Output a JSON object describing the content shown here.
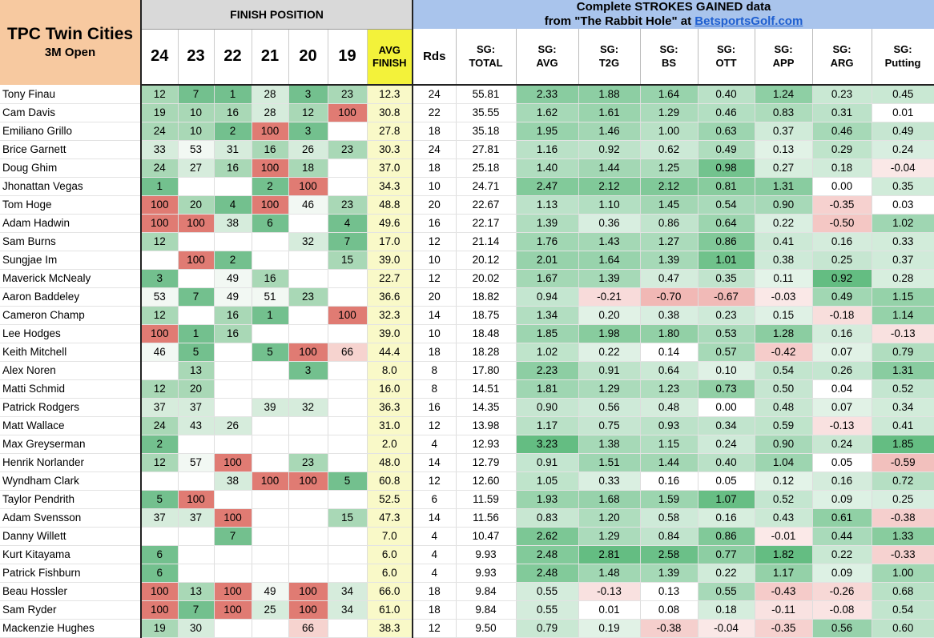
{
  "header": {
    "course": "TPC Twin Cities",
    "event": "3M Open",
    "finish_position_label": "FINISH POSITION",
    "sg_title_line1": "Complete STROKES GAINED data",
    "sg_title_prefix": "from \"The Rabbit Hole\" at ",
    "sg_title_link": "BetsportsGolf.com",
    "years": [
      "24",
      "23",
      "22",
      "21",
      "20",
      "19"
    ],
    "avg_finish_l1": "AVG",
    "avg_finish_l2": "FINISH",
    "rds": "Rds",
    "stat_cols": [
      [
        "SG:",
        "TOTAL"
      ],
      [
        "SG:",
        "AVG"
      ],
      [
        "SG:",
        "T2G"
      ],
      [
        "SG:",
        "BS"
      ],
      [
        "SG:",
        "OTT"
      ],
      [
        "SG:",
        "APP"
      ],
      [
        "SG:",
        "ARG"
      ],
      [
        "SG:",
        "Putting"
      ]
    ]
  },
  "rows": [
    {
      "name": "Tony Finau",
      "f": [
        "12",
        "7",
        "1",
        "28",
        "3",
        "23"
      ],
      "avg": "12.3",
      "rds": "24",
      "sg": [
        "55.81",
        "2.33",
        "1.88",
        "1.64",
        "0.40",
        "1.24",
        "0.23",
        "0.45"
      ]
    },
    {
      "name": "Cam Davis",
      "f": [
        "19",
        "10",
        "16",
        "28",
        "12",
        "100"
      ],
      "avg": "30.8",
      "rds": "22",
      "sg": [
        "35.55",
        "1.62",
        "1.61",
        "1.29",
        "0.46",
        "0.83",
        "0.31",
        "0.01"
      ]
    },
    {
      "name": "Emiliano Grillo",
      "f": [
        "24",
        "10",
        "2",
        "100",
        "3",
        ""
      ],
      "avg": "27.8",
      "rds": "18",
      "sg": [
        "35.18",
        "1.95",
        "1.46",
        "1.00",
        "0.63",
        "0.37",
        "0.46",
        "0.49"
      ]
    },
    {
      "name": "Brice Garnett",
      "f": [
        "33",
        "53",
        "31",
        "16",
        "26",
        "23"
      ],
      "avg": "30.3",
      "rds": "24",
      "sg": [
        "27.81",
        "1.16",
        "0.92",
        "0.62",
        "0.49",
        "0.13",
        "0.29",
        "0.24"
      ]
    },
    {
      "name": "Doug Ghim",
      "f": [
        "24",
        "27",
        "16",
        "100",
        "18",
        ""
      ],
      "avg": "37.0",
      "rds": "18",
      "sg": [
        "25.18",
        "1.40",
        "1.44",
        "1.25",
        "0.98",
        "0.27",
        "0.18",
        "-0.04"
      ]
    },
    {
      "name": "Jhonattan Vegas",
      "f": [
        "1",
        "",
        "",
        "2",
        "100",
        ""
      ],
      "avg": "34.3",
      "rds": "10",
      "sg": [
        "24.71",
        "2.47",
        "2.12",
        "2.12",
        "0.81",
        "1.31",
        "0.00",
        "0.35"
      ]
    },
    {
      "name": "Tom Hoge",
      "f": [
        "100",
        "20",
        "4",
        "100",
        "46",
        "23"
      ],
      "avg": "48.8",
      "rds": "20",
      "sg": [
        "22.67",
        "1.13",
        "1.10",
        "1.45",
        "0.54",
        "0.90",
        "-0.35",
        "0.03"
      ]
    },
    {
      "name": "Adam Hadwin",
      "f": [
        "100",
        "100",
        "38",
        "6",
        "",
        "4"
      ],
      "avg": "49.6",
      "rds": "16",
      "sg": [
        "22.17",
        "1.39",
        "0.36",
        "0.86",
        "0.64",
        "0.22",
        "-0.50",
        "1.02"
      ]
    },
    {
      "name": "Sam Burns",
      "f": [
        "12",
        "",
        "",
        "",
        "32",
        "7"
      ],
      "avg": "17.0",
      "rds": "12",
      "sg": [
        "21.14",
        "1.76",
        "1.43",
        "1.27",
        "0.86",
        "0.41",
        "0.16",
        "0.33"
      ]
    },
    {
      "name": "Sungjae Im",
      "f": [
        "",
        "100",
        "2",
        "",
        "",
        "15"
      ],
      "avg": "39.0",
      "rds": "10",
      "sg": [
        "20.12",
        "2.01",
        "1.64",
        "1.39",
        "1.01",
        "0.38",
        "0.25",
        "0.37"
      ]
    },
    {
      "name": "Maverick McNealy",
      "f": [
        "3",
        "",
        "49",
        "16",
        "",
        ""
      ],
      "avg": "22.7",
      "rds": "12",
      "sg": [
        "20.02",
        "1.67",
        "1.39",
        "0.47",
        "0.35",
        "0.11",
        "0.92",
        "0.28"
      ]
    },
    {
      "name": "Aaron Baddeley",
      "f": [
        "53",
        "7",
        "49",
        "51",
        "23",
        ""
      ],
      "avg": "36.6",
      "rds": "20",
      "sg": [
        "18.82",
        "0.94",
        "-0.21",
        "-0.70",
        "-0.67",
        "-0.03",
        "0.49",
        "1.15"
      ]
    },
    {
      "name": "Cameron Champ",
      "f": [
        "12",
        "",
        "16",
        "1",
        "",
        "100"
      ],
      "avg": "32.3",
      "rds": "14",
      "sg": [
        "18.75",
        "1.34",
        "0.20",
        "0.38",
        "0.23",
        "0.15",
        "-0.18",
        "1.14"
      ]
    },
    {
      "name": "Lee Hodges",
      "f": [
        "100",
        "1",
        "16",
        "",
        "",
        ""
      ],
      "avg": "39.0",
      "rds": "10",
      "sg": [
        "18.48",
        "1.85",
        "1.98",
        "1.80",
        "0.53",
        "1.28",
        "0.16",
        "-0.13"
      ]
    },
    {
      "name": "Keith Mitchell",
      "f": [
        "46",
        "5",
        "",
        "5",
        "100",
        "66"
      ],
      "avg": "44.4",
      "rds": "18",
      "sg": [
        "18.28",
        "1.02",
        "0.22",
        "0.14",
        "0.57",
        "-0.42",
        "0.07",
        "0.79"
      ]
    },
    {
      "name": "Alex Noren",
      "f": [
        "",
        "13",
        "",
        "",
        "3",
        ""
      ],
      "avg": "8.0",
      "rds": "8",
      "sg": [
        "17.80",
        "2.23",
        "0.91",
        "0.64",
        "0.10",
        "0.54",
        "0.26",
        "1.31"
      ]
    },
    {
      "name": "Matti Schmid",
      "f": [
        "12",
        "20",
        "",
        "",
        "",
        ""
      ],
      "avg": "16.0",
      "rds": "8",
      "sg": [
        "14.51",
        "1.81",
        "1.29",
        "1.23",
        "0.73",
        "0.50",
        "0.04",
        "0.52"
      ]
    },
    {
      "name": "Patrick Rodgers",
      "f": [
        "37",
        "37",
        "",
        "39",
        "32",
        ""
      ],
      "avg": "36.3",
      "rds": "16",
      "sg": [
        "14.35",
        "0.90",
        "0.56",
        "0.48",
        "0.00",
        "0.48",
        "0.07",
        "0.34"
      ]
    },
    {
      "name": "Matt Wallace",
      "f": [
        "24",
        "43",
        "26",
        "",
        "",
        ""
      ],
      "avg": "31.0",
      "rds": "12",
      "sg": [
        "13.98",
        "1.17",
        "0.75",
        "0.93",
        "0.34",
        "0.59",
        "-0.13",
        "0.41"
      ]
    },
    {
      "name": "Max Greyserman",
      "f": [
        "2",
        "",
        "",
        "",
        "",
        ""
      ],
      "avg": "2.0",
      "rds": "4",
      "sg": [
        "12.93",
        "3.23",
        "1.38",
        "1.15",
        "0.24",
        "0.90",
        "0.24",
        "1.85"
      ]
    },
    {
      "name": "Henrik Norlander",
      "f": [
        "12",
        "57",
        "100",
        "",
        "23",
        ""
      ],
      "avg": "48.0",
      "rds": "14",
      "sg": [
        "12.79",
        "0.91",
        "1.51",
        "1.44",
        "0.40",
        "1.04",
        "0.05",
        "-0.59"
      ]
    },
    {
      "name": "Wyndham Clark",
      "f": [
        "",
        "",
        "38",
        "100",
        "100",
        "5"
      ],
      "avg": "60.8",
      "rds": "12",
      "sg": [
        "12.60",
        "1.05",
        "0.33",
        "0.16",
        "0.05",
        "0.12",
        "0.16",
        "0.72"
      ]
    },
    {
      "name": "Taylor Pendrith",
      "f": [
        "5",
        "100",
        "",
        "",
        "",
        ""
      ],
      "avg": "52.5",
      "rds": "6",
      "sg": [
        "11.59",
        "1.93",
        "1.68",
        "1.59",
        "1.07",
        "0.52",
        "0.09",
        "0.25"
      ]
    },
    {
      "name": "Adam Svensson",
      "f": [
        "37",
        "37",
        "100",
        "",
        "",
        "15"
      ],
      "avg": "47.3",
      "rds": "14",
      "sg": [
        "11.56",
        "0.83",
        "1.20",
        "0.58",
        "0.16",
        "0.43",
        "0.61",
        "-0.38"
      ]
    },
    {
      "name": "Danny Willett",
      "f": [
        "",
        "",
        "7",
        "",
        "",
        ""
      ],
      "avg": "7.0",
      "rds": "4",
      "sg": [
        "10.47",
        "2.62",
        "1.29",
        "0.84",
        "0.86",
        "-0.01",
        "0.44",
        "1.33"
      ]
    },
    {
      "name": "Kurt Kitayama",
      "f": [
        "6",
        "",
        "",
        "",
        "",
        ""
      ],
      "avg": "6.0",
      "rds": "4",
      "sg": [
        "9.93",
        "2.48",
        "2.81",
        "2.58",
        "0.77",
        "1.82",
        "0.22",
        "-0.33"
      ]
    },
    {
      "name": "Patrick Fishburn",
      "f": [
        "6",
        "",
        "",
        "",
        "",
        ""
      ],
      "avg": "6.0",
      "rds": "4",
      "sg": [
        "9.93",
        "2.48",
        "1.48",
        "1.39",
        "0.22",
        "1.17",
        "0.09",
        "1.00"
      ]
    },
    {
      "name": "Beau Hossler",
      "f": [
        "100",
        "13",
        "100",
        "49",
        "100",
        "34"
      ],
      "avg": "66.0",
      "rds": "18",
      "sg": [
        "9.84",
        "0.55",
        "-0.13",
        "0.13",
        "0.55",
        "-0.43",
        "-0.26",
        "0.68"
      ]
    },
    {
      "name": "Sam Ryder",
      "f": [
        "100",
        "7",
        "100",
        "25",
        "100",
        "34"
      ],
      "avg": "61.0",
      "rds": "18",
      "sg": [
        "9.84",
        "0.55",
        "0.01",
        "0.08",
        "0.18",
        "-0.11",
        "-0.08",
        "0.54"
      ]
    },
    {
      "name": "Mackenzie Hughes",
      "f": [
        "19",
        "30",
        "",
        "",
        "66",
        ""
      ],
      "avg": "38.3",
      "rds": "12",
      "sg": [
        "9.50",
        "0.79",
        "0.19",
        "-0.38",
        "-0.04",
        "-0.35",
        "0.56",
        "0.60"
      ]
    }
  ]
}
